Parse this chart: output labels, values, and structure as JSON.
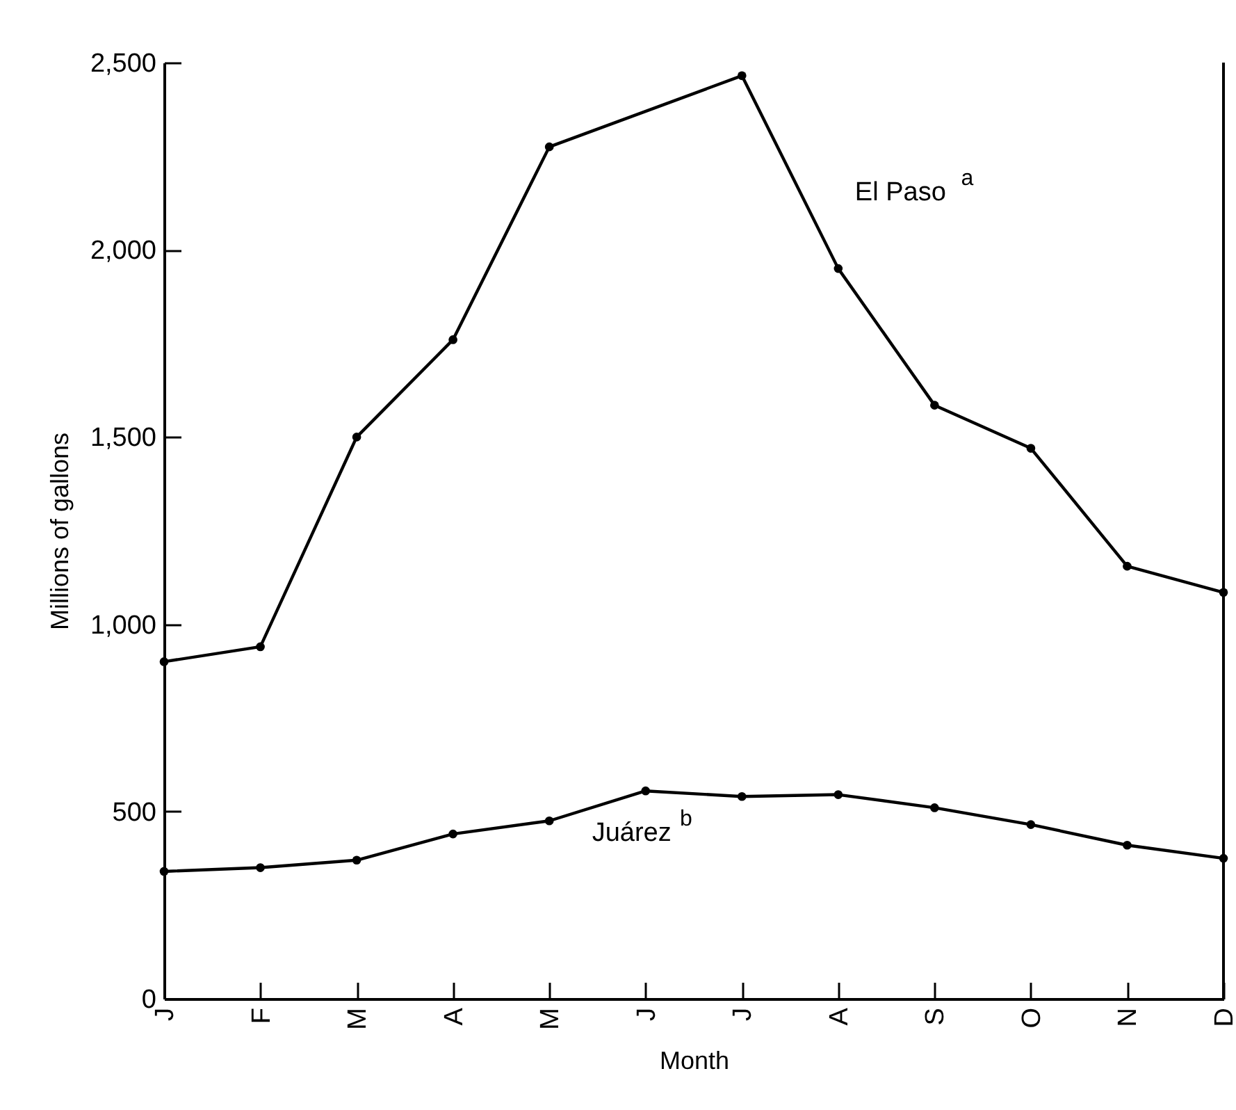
{
  "chart_data": {
    "type": "line",
    "xlabel": "Month",
    "ylabel": "Millions of gallons",
    "categories": [
      "J",
      "F",
      "M",
      "A",
      "M",
      "J",
      "J",
      "A",
      "S",
      "O",
      "N",
      "D"
    ],
    "series": [
      {
        "name": "El Paso$^{a}$",
        "color": "#000000",
        "values": [
          900,
          940,
          1500,
          1760,
          2275,
          null,
          2465,
          1950,
          1585,
          1470,
          1155,
          1085
        ]
      },
      {
        "name": "Juárez$^{b}$",
        "color": "#000000",
        "values": [
          340,
          350,
          370,
          440,
          475,
          555,
          540,
          545,
          510,
          465,
          410,
          375
        ]
      }
    ],
    "ylim": [
      0,
      2500
    ],
    "yticks": [
      {
        "value": 0,
        "label": "0"
      },
      {
        "value": 500,
        "label": "500"
      },
      {
        "value": 1000,
        "label": "1,000"
      },
      {
        "value": 1500,
        "label": "1,500"
      },
      {
        "value": 2000,
        "label": "2,000"
      },
      {
        "value": 2500,
        "label": "2,500"
      }
    ],
    "marker": "circle",
    "line_style": "solid"
  }
}
